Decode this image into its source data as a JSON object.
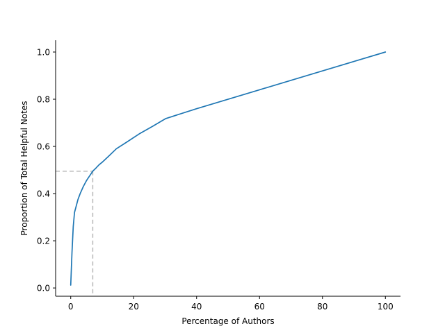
{
  "chart_data": {
    "type": "line",
    "xlabel": "Percentage of Authors",
    "ylabel": "Proportion of Total Helpful Notes",
    "xlim": [
      -4.8,
      104.8
    ],
    "ylim": [
      -0.035,
      1.05
    ],
    "xticks": [
      0,
      20,
      40,
      60,
      80,
      100
    ],
    "yticks": [
      0.0,
      0.2,
      0.4,
      0.6,
      0.8,
      1.0
    ],
    "grid": false,
    "colors": {
      "series": "#1f77b4",
      "guide": "#b8b8b8"
    },
    "series": [
      {
        "x": [
          0,
          0.4,
          0.8,
          1.2,
          1.7,
          2.3,
          3.0,
          4.0,
          5.0,
          6.0,
          7.0,
          8.0,
          9.0,
          10.0,
          12.0,
          14.5,
          18.0,
          22.0,
          26.0,
          30.2,
          40.0,
          50.0,
          60.0,
          70.0,
          80.0,
          90.0,
          100.0
        ],
        "y": [
          0.012,
          0.15,
          0.26,
          0.32,
          0.345,
          0.375,
          0.4,
          0.43,
          0.455,
          0.475,
          0.495,
          0.508,
          0.522,
          0.533,
          0.558,
          0.59,
          0.62,
          0.655,
          0.685,
          0.718,
          0.76,
          0.8,
          0.84,
          0.88,
          0.92,
          0.96,
          1.0
        ]
      }
    ],
    "reference_point": {
      "x": 7.0,
      "y": 0.495
    }
  }
}
